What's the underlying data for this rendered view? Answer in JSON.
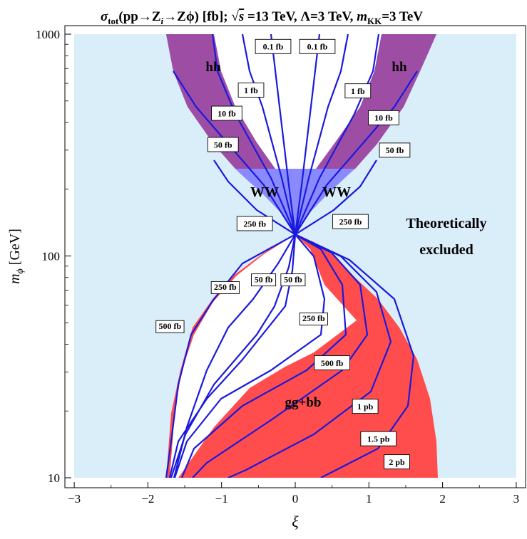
{
  "chart_data": {
    "type": "contour",
    "title_parts": {
      "sigma": "σ",
      "sub": "tot",
      "process": "(pp→Z",
      "zi_sub": "i",
      "process2": "→Zϕ) [fb]; ",
      "root": "√",
      "s": "s",
      "energy": " =13 TeV, Λ=3 TeV, ",
      "m": "m",
      "kk": "KK",
      "mkk_val": "=3 TeV"
    },
    "xlabel": "ξ",
    "ylabel": {
      "m": "m",
      "sub": "ϕ",
      "unit": " [GeV]"
    },
    "xlim": [
      -3.2,
      3.2
    ],
    "ylim": [
      10,
      1000
    ],
    "yscale": "log",
    "x_ticks": [
      -3,
      -2,
      -1,
      0,
      1,
      2,
      3
    ],
    "x_tick_labels": [
      "−3",
      "−2",
      "−1",
      "0",
      "1",
      "2",
      "3"
    ],
    "y_ticks": [
      10,
      100,
      1000
    ],
    "y_tick_labels": [
      "10",
      "100",
      "1000"
    ],
    "pinch_point": {
      "xi": 0,
      "m": 125
    },
    "colors": {
      "excluded": "#daeefa",
      "hh": "#9e4da5",
      "hh_blue": "#6a52e0",
      "ww": "#8a8aff",
      "ggbb": "#ff4c4c",
      "contour": "#1a1adc",
      "allowed": "#ffffff"
    },
    "regions": {
      "hh": "hh",
      "ww": "WW",
      "ggbb": "gg+bb",
      "excluded_line1": "Theoretically",
      "excluded_line2": "excluded"
    },
    "contour_labels": [
      {
        "text": "0.1 fb",
        "xi": -0.3,
        "m": 880
      },
      {
        "text": "0.1 fb",
        "xi": 0.3,
        "m": 880
      },
      {
        "text": "1 fb",
        "xi": -0.6,
        "m": 560
      },
      {
        "text": "1 fb",
        "xi": 0.85,
        "m": 555
      },
      {
        "text": "10 fb",
        "xi": -0.93,
        "m": 440
      },
      {
        "text": "10 fb",
        "xi": 1.2,
        "m": 420
      },
      {
        "text": "50 fb",
        "xi": -0.98,
        "m": 318
      },
      {
        "text": "50 fb",
        "xi": 1.35,
        "m": 300
      },
      {
        "text": "250 fb",
        "xi": -0.55,
        "m": 140
      },
      {
        "text": "250 fb",
        "xi": 0.75,
        "m": 143
      },
      {
        "text": "250 fb",
        "xi": -0.95,
        "m": 72
      },
      {
        "text": "50 fb",
        "xi": -0.43,
        "m": 78
      },
      {
        "text": "50 fb",
        "xi": -0.03,
        "m": 78
      },
      {
        "text": "500 fb",
        "xi": -1.7,
        "m": 48
      },
      {
        "text": "250 fb",
        "xi": 0.25,
        "m": 52
      },
      {
        "text": "500 fb",
        "xi": 0.5,
        "m": 33
      },
      {
        "text": "1 pb",
        "xi": 0.95,
        "m": 21
      },
      {
        "text": "1.5 pb",
        "xi": 1.13,
        "m": 15
      },
      {
        "text": "2 pb",
        "xi": 1.38,
        "m": 11.8
      }
    ]
  }
}
